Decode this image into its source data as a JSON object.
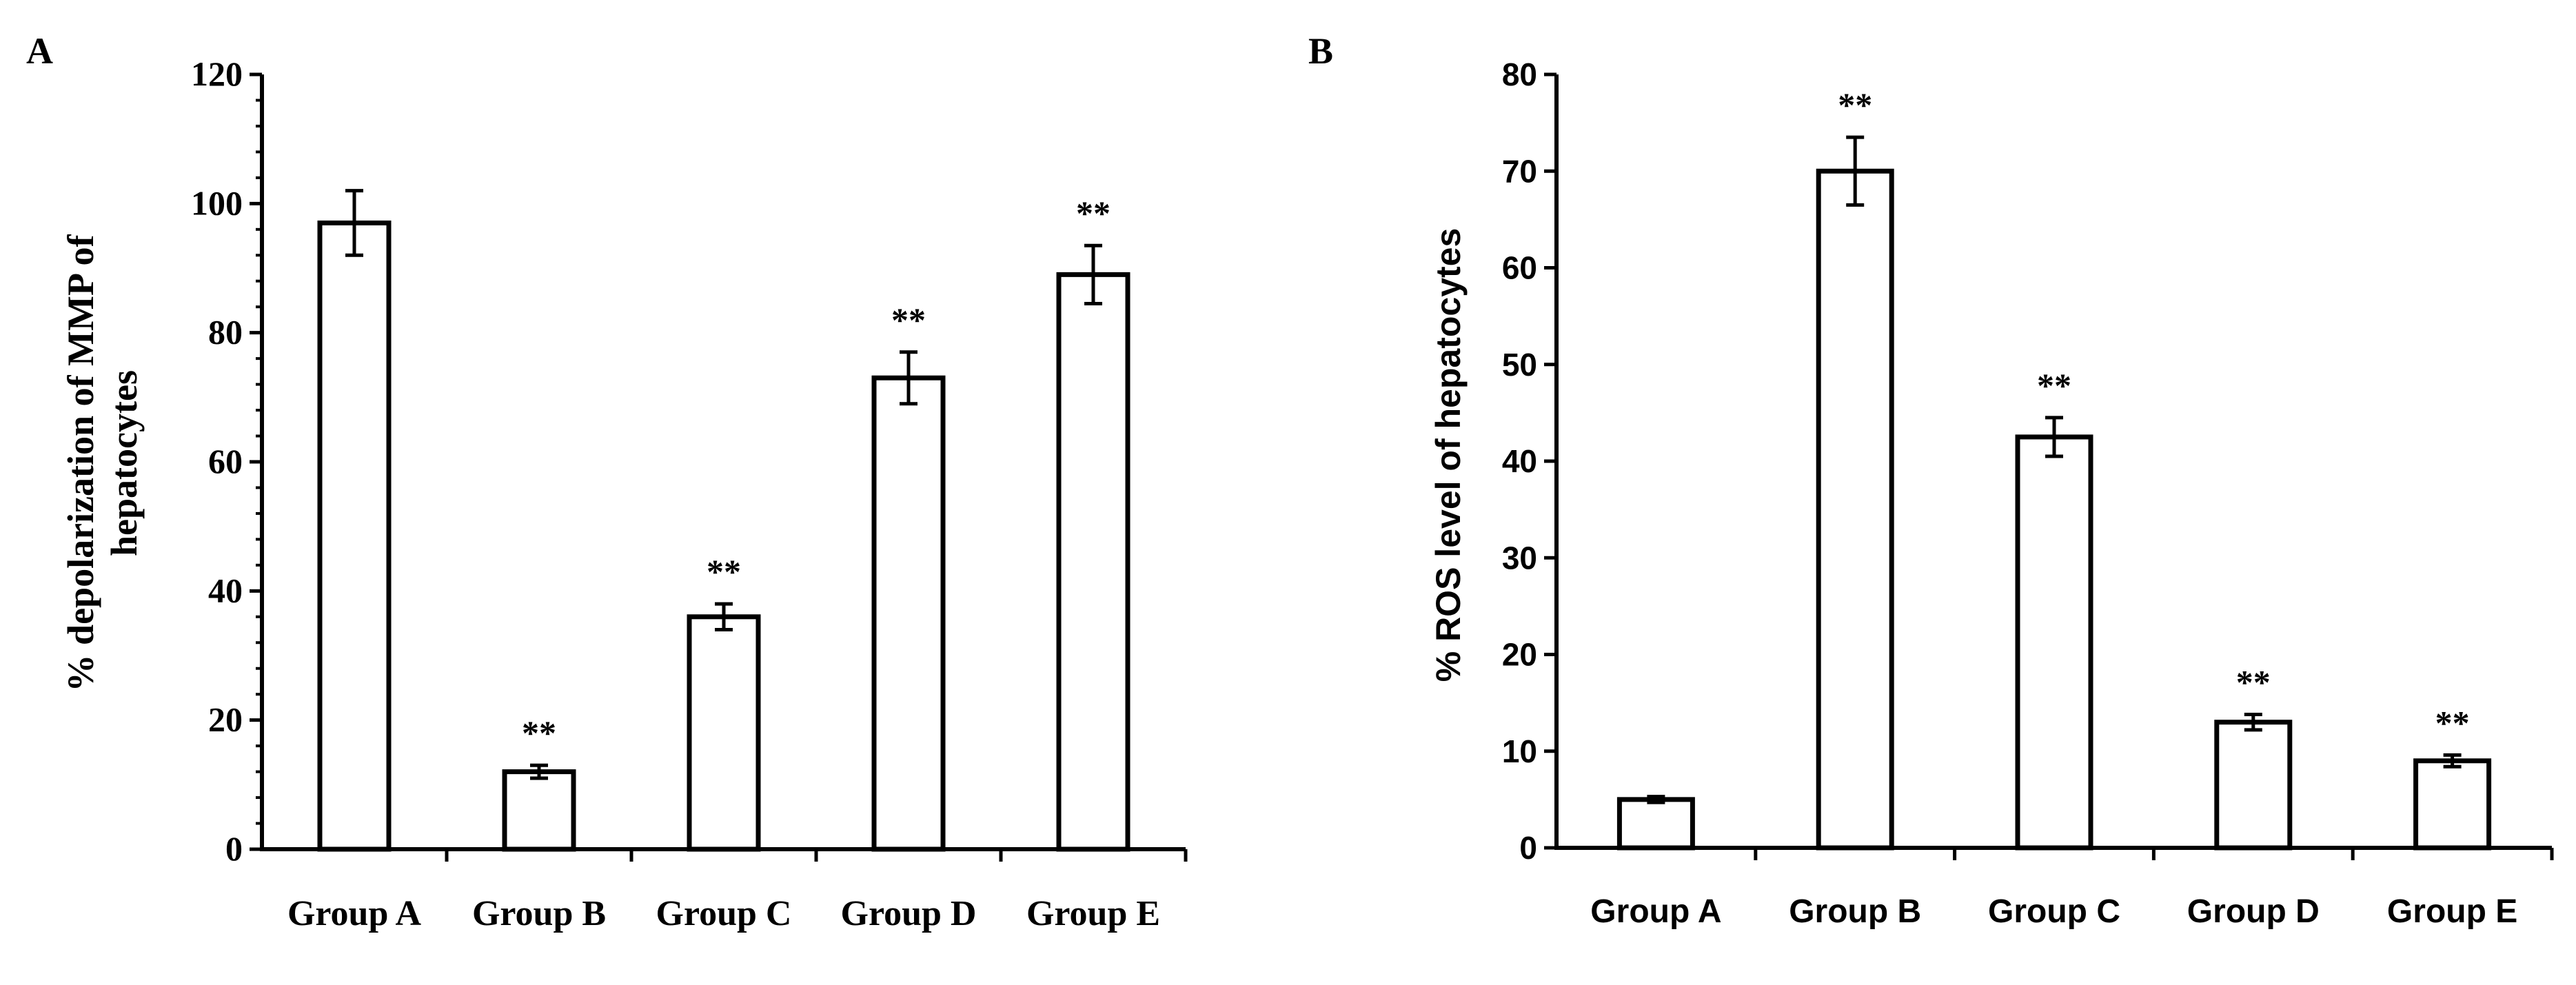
{
  "chart_data": [
    {
      "panel": "A",
      "type": "bar",
      "ylabel": [
        "% depolarization of MMP of",
        "hepatocytes"
      ],
      "xlabel": "",
      "categories": [
        "Group A",
        "Group B",
        "Group C",
        "Group D",
        "Group E"
      ],
      "values": [
        97,
        12,
        36,
        73,
        89
      ],
      "errors": [
        5,
        1,
        2,
        4,
        4.5
      ],
      "significance": [
        "",
        "**",
        "**",
        "**",
        "**"
      ],
      "ylim": [
        0,
        120
      ],
      "yticks": [
        "0",
        "20",
        "40",
        "60",
        "80",
        "100",
        "120"
      ],
      "grid": false
    },
    {
      "panel": "B",
      "type": "bar",
      "ylabel": [
        "% ROS level of hepatocytes"
      ],
      "xlabel": "",
      "categories": [
        "Group A",
        "Group B",
        "Group C",
        "Group D",
        "Group E"
      ],
      "values": [
        5,
        70,
        42.5,
        13,
        9
      ],
      "errors": [
        0.3,
        3.5,
        2,
        0.8,
        0.6
      ],
      "significance": [
        "",
        "**",
        "**",
        "**",
        "**"
      ],
      "ylim": [
        0,
        80
      ],
      "yticks": [
        "0",
        "10",
        "20",
        "30",
        "40",
        "50",
        "60",
        "70",
        "80"
      ],
      "grid": false
    }
  ]
}
